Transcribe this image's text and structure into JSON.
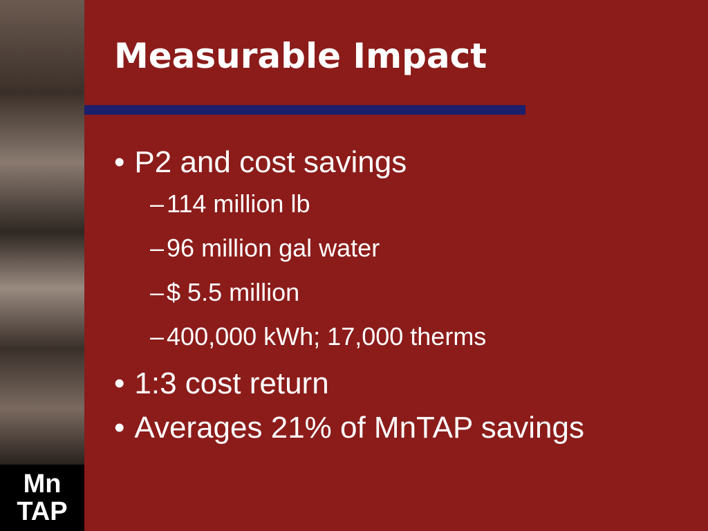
{
  "slide": {
    "title": "Measurable Impact",
    "bullets": [
      {
        "text": "P2 and cost savings",
        "subs": [
          "114 million lb",
          "96 million gal water",
          "$ 5.5 million",
          "400,000 kWh; 17,000 therms"
        ]
      },
      {
        "text": "1:3 cost return",
        "subs": []
      },
      {
        "text": "Averages 21% of MnTAP savings",
        "subs": []
      }
    ],
    "logo": {
      "line1": "Mn",
      "line2": "TAP"
    }
  }
}
